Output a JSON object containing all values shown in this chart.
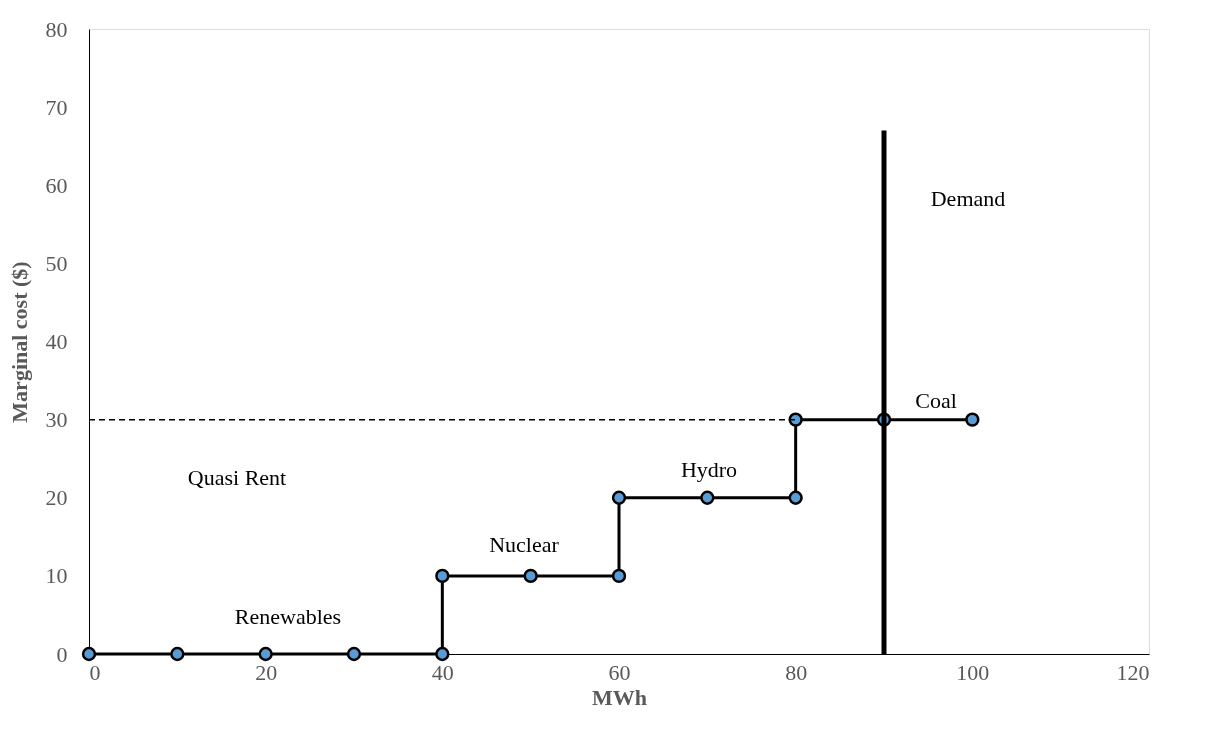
{
  "chart_data": {
    "type": "line",
    "xlabel": "MWh",
    "ylabel": "Marginal cost ($)",
    "xlim": [
      0,
      120
    ],
    "xticks": [
      0,
      20,
      40,
      60,
      80,
      100,
      120
    ],
    "ylim": [
      0,
      80
    ],
    "yticks": [
      0,
      10,
      20,
      30,
      40,
      50,
      60,
      70,
      80
    ],
    "grid": false,
    "legend": false,
    "series": [
      {
        "color": "#000000",
        "marker": "circle",
        "line_style": "solid",
        "x": [
          0,
          10,
          20,
          30,
          40,
          40,
          50,
          60,
          60,
          70,
          80,
          80,
          90,
          100
        ],
        "values": [
          0,
          0,
          0,
          0,
          0,
          10,
          10,
          10,
          20,
          20,
          20,
          30,
          30,
          30
        ]
      },
      {
        "color": "#000000",
        "marker": "none",
        "line_style": "dashed",
        "x": [
          0,
          80
        ],
        "values": [
          30,
          30
        ]
      },
      {
        "color": "#000000",
        "marker": "none",
        "line_style": "solid",
        "x": [
          90,
          90
        ],
        "values": [
          0,
          67
        ]
      }
    ],
    "annotations": [
      "Quasi Rent",
      "Renewables",
      "Nuclear",
      "Hydro",
      "Coal",
      "Demand"
    ]
  }
}
